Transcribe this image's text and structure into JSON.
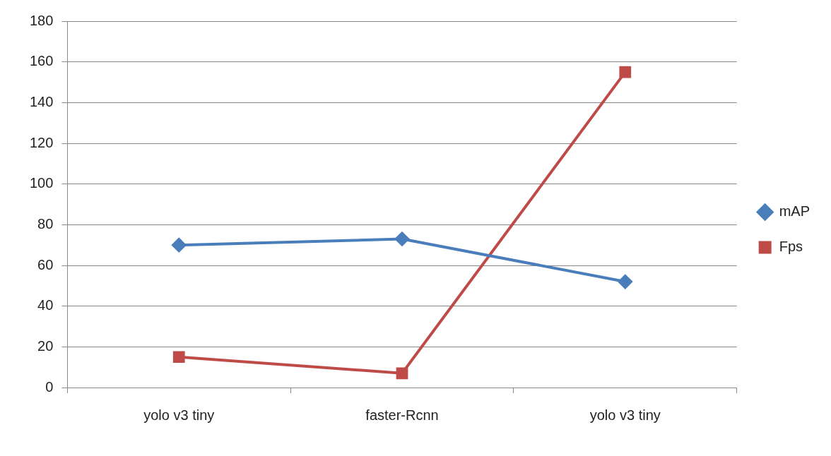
{
  "chart_data": {
    "type": "line",
    "categories": [
      "yolo v3 tiny",
      "faster-Rcnn",
      "yolo v3 tiny"
    ],
    "series": [
      {
        "name": "mAP",
        "color": "#4a7ebb",
        "marker": "diamond",
        "values": [
          70,
          73,
          52
        ]
      },
      {
        "name": "Fps",
        "color": "#be4b48",
        "marker": "square",
        "values": [
          15,
          7,
          155
        ]
      }
    ],
    "ylim": [
      0,
      180
    ],
    "yticks": [
      0,
      20,
      40,
      60,
      80,
      100,
      120,
      140,
      160,
      180
    ],
    "grid": "y",
    "legend": "right",
    "line_style": "solid"
  }
}
